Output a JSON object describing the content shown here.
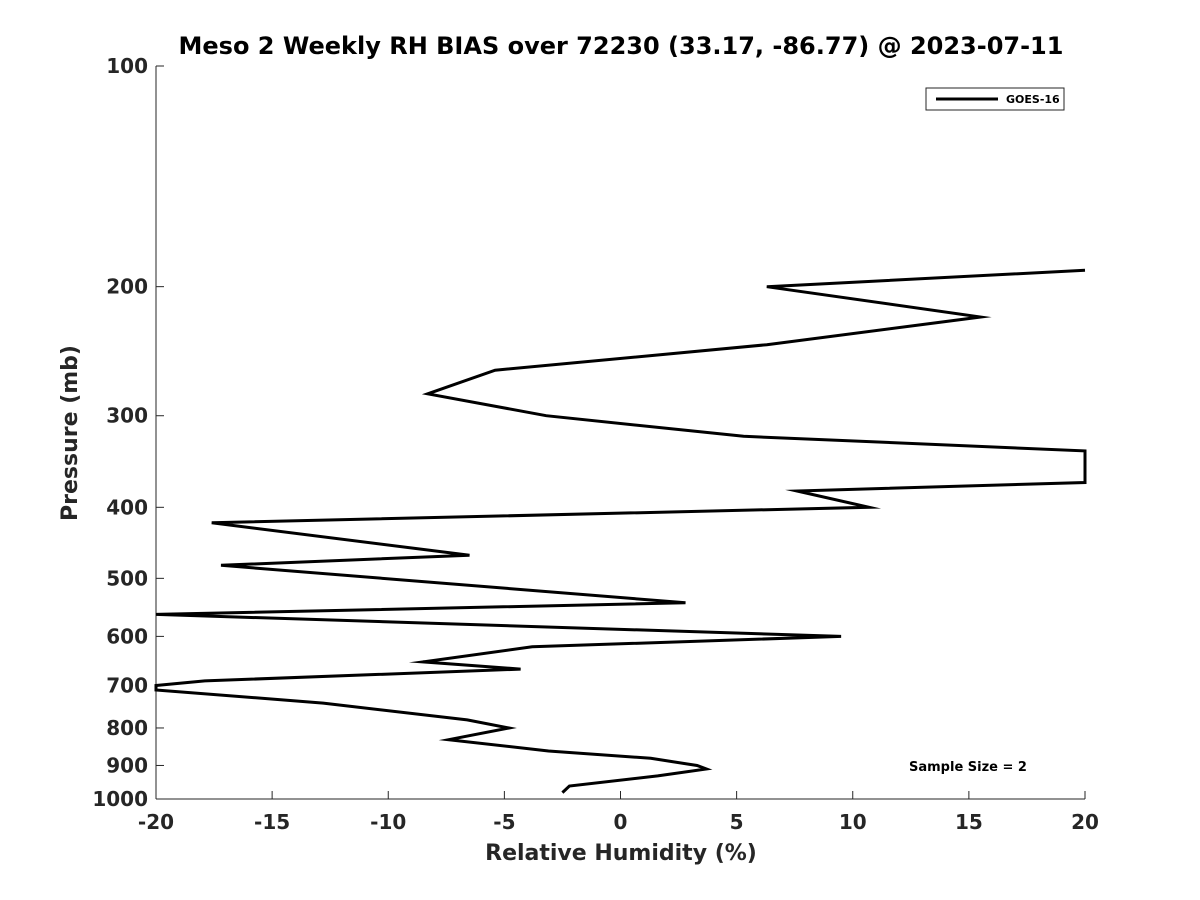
{
  "chart_data": {
    "type": "line",
    "title": "Meso 2 Weekly RH BIAS over 72230 (33.17, -86.77) @ 2023-07-11",
    "xlabel": "Relative Humidity (%)",
    "ylabel": "Pressure (mb)",
    "xlim": [
      -20,
      20
    ],
    "ylim": [
      100,
      1000
    ],
    "yscale": "log",
    "y_reversed": true,
    "x_ticks": [
      -20,
      -15,
      -10,
      -5,
      0,
      5,
      10,
      15,
      20
    ],
    "x_tick_labels": [
      "-20",
      "-15",
      "-10",
      "-5",
      "0",
      "5",
      "10",
      "15",
      "20"
    ],
    "y_ticks": [
      100,
      200,
      300,
      400,
      500,
      600,
      700,
      800,
      900,
      1000
    ],
    "y_tick_labels": [
      "100",
      "200",
      "300",
      "400",
      "500",
      "600",
      "700",
      "800",
      "900",
      "1000"
    ],
    "grid": false,
    "legend_position": "top-right",
    "annotation": "Sample Size = 2",
    "series": [
      {
        "name": "GOES-16",
        "color": "#000000",
        "x": [
          20,
          6.3,
          15.5,
          6.3,
          -5.4,
          -8.3,
          -3.2,
          5.3,
          20,
          20,
          7.6,
          10.7,
          -17.6,
          -6.5,
          -17.2,
          2.8,
          -20,
          9.5,
          -3.8,
          -8.5,
          -4.3,
          -17.9,
          -20,
          -20,
          -12.8,
          -6.6,
          -4.8,
          -7.4,
          -3.1,
          1.3,
          3.3,
          3.7,
          1.6,
          -2.2,
          -2.5
        ],
        "y": [
          190,
          200,
          220,
          240,
          260,
          280,
          300,
          320,
          335,
          370,
          380,
          400,
          420,
          465,
          480,
          540,
          560,
          600,
          620,
          650,
          665,
          690,
          700,
          710,
          740,
          780,
          800,
          830,
          860,
          880,
          900,
          910,
          930,
          960,
          980
        ]
      }
    ]
  }
}
